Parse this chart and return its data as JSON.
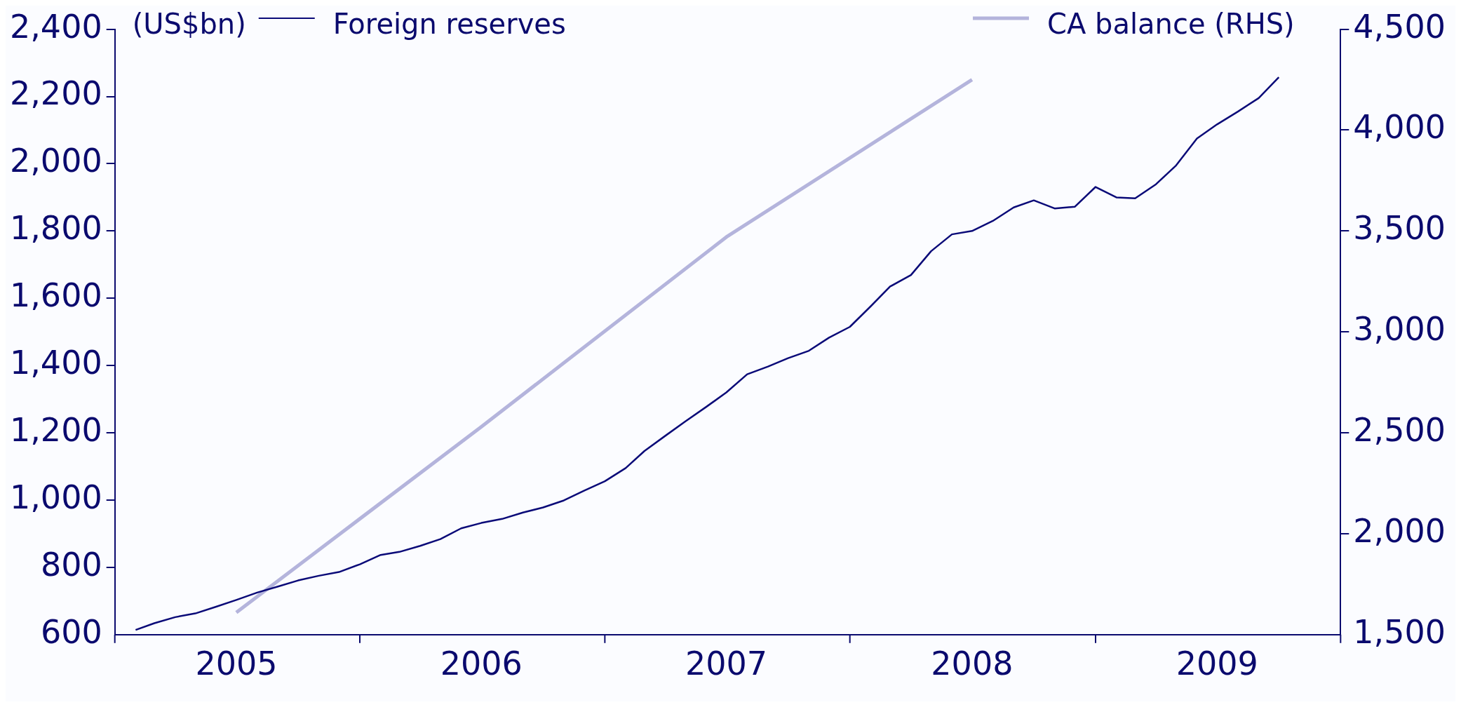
{
  "chart_data": {
    "type": "line",
    "ylabel": "(US$bn)",
    "legend": "top",
    "grid": false,
    "xlim": [
      "2005-01",
      "2010-01"
    ],
    "xticks": [
      {
        "value": "2005-01",
        "label": null
      },
      {
        "value": "2005-07",
        "label": "2005"
      },
      {
        "value": "2006-01",
        "label": null
      },
      {
        "value": "2006-07",
        "label": "2006"
      },
      {
        "value": "2007-01",
        "label": null
      },
      {
        "value": "2007-07",
        "label": "2007"
      },
      {
        "value": "2008-01",
        "label": null
      },
      {
        "value": "2008-07",
        "label": "2008"
      },
      {
        "value": "2009-01",
        "label": null
      },
      {
        "value": "2009-07",
        "label": "2009"
      },
      {
        "value": "2010-01",
        "label": null
      }
    ],
    "ylim": [
      600,
      2400
    ],
    "yticks": [
      600,
      800,
      {
        "value": 1000,
        "label": "1,000"
      },
      {
        "value": 1200,
        "label": "1,200"
      },
      {
        "value": 1400,
        "label": "1,400"
      },
      {
        "value": 1600,
        "label": "1,600"
      },
      {
        "value": 1800,
        "label": "1,800"
      },
      {
        "value": 2000,
        "label": "2,000"
      },
      {
        "value": 2200,
        "label": "2,200"
      },
      {
        "value": 2400,
        "label": "2,400"
      }
    ],
    "y2lim": [
      1500,
      4500
    ],
    "y2ticks": [
      {
        "value": 1500,
        "label": "1,500"
      },
      {
        "value": 2000,
        "label": "2,000"
      },
      {
        "value": 2500,
        "label": "2,500"
      },
      {
        "value": 3000,
        "label": "3,000"
      },
      {
        "value": 3500,
        "label": "3,500"
      },
      {
        "value": 4000,
        "label": "4,000"
      },
      {
        "value": 4500,
        "label": "4,500"
      }
    ],
    "series": [
      {
        "name": "Foreign reserves",
        "color": "#0a0a78",
        "x": [
          "2005-02",
          "2005-03",
          "2005-04",
          "2005-05",
          "2005-06",
          "2005-07",
          "2005-08",
          "2005-09",
          "2005-10",
          "2005-11",
          "2005-12",
          "2006-01",
          "2006-02",
          "2006-03",
          "2006-04",
          "2006-05",
          "2006-06",
          "2006-07",
          "2006-08",
          "2006-09",
          "2006-10",
          "2006-11",
          "2006-12",
          "2007-01",
          "2007-02",
          "2007-03",
          "2007-04",
          "2007-05",
          "2007-06",
          "2007-07",
          "2007-08",
          "2007-09",
          "2007-10",
          "2007-11",
          "2007-12",
          "2008-01",
          "2008-02",
          "2008-03",
          "2008-04",
          "2008-05",
          "2008-06",
          "2008-07",
          "2008-08",
          "2008-09",
          "2008-10",
          "2008-11",
          "2008-12",
          "2009-01",
          "2009-02",
          "2009-03",
          "2009-04",
          "2009-05",
          "2009-06",
          "2009-07",
          "2009-08",
          "2009-09",
          "2009-10"
        ],
        "values": [
          614,
          634,
          652,
          663,
          683,
          703,
          725,
          743,
          761,
          775,
          786,
          809,
          837,
          846,
          864,
          884,
          916,
          932,
          944,
          963,
          978,
          999,
          1028,
          1056,
          1095,
          1146,
          1191,
          1234,
          1277,
          1320,
          1374,
          1397,
          1422,
          1444,
          1483,
          1515,
          1576,
          1635,
          1669,
          1740,
          1790,
          1800,
          1830,
          1870,
          1891,
          1867,
          1872,
          1931,
          1900,
          1897,
          1939,
          1995,
          2075,
          2117,
          2155,
          2195,
          2257
        ]
      },
      {
        "name": "CA balance (RHS)",
        "color": "#b4b4dc",
        "axis": "y2",
        "x": [
          "2005-07",
          "2006-07",
          "2007-07",
          "2008-07"
        ],
        "values": [
          1610,
          2530,
          3470,
          4250
        ]
      }
    ]
  }
}
